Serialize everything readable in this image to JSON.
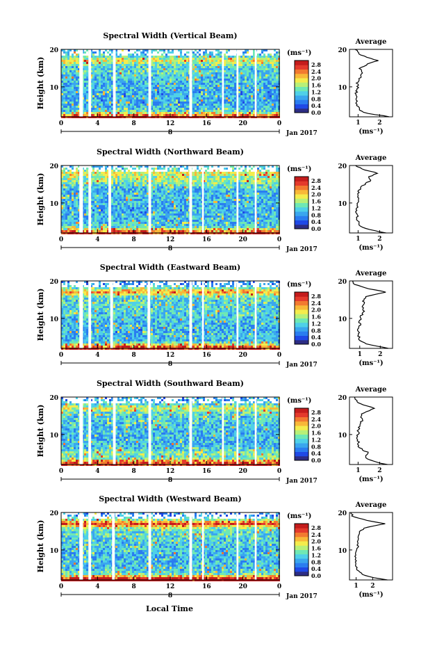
{
  "figure": {
    "xlabel": "Local Time",
    "date_label": "Jan 2017",
    "day_label": "8"
  },
  "colorbar": {
    "unit": "(ms⁻¹)",
    "ticks": [
      "0.0",
      "0.4",
      "0.8",
      "1.2",
      "1.6",
      "2.0",
      "2.4",
      "2.8"
    ],
    "colors": [
      "#2d2d84",
      "#1f49e6",
      "#2a7df0",
      "#3aa6ee",
      "#4fd0e8",
      "#6fe8b4",
      "#b8f078",
      "#f4ec4c",
      "#f8b838",
      "#f27a30",
      "#e43a2c",
      "#c41c1c"
    ]
  },
  "chart_data": [
    {
      "type": "heatmap",
      "title": "Spectral Width (Vertical Beam)",
      "ylabel": "Height (km)",
      "x_ticks": [
        "0",
        "4",
        "8",
        "12",
        "16",
        "20",
        "0"
      ],
      "y_ticks": [
        "10",
        "20"
      ],
      "xlim": [
        0,
        24
      ],
      "ylim": [
        2,
        20
      ],
      "gaps_hours": [
        [
          2.0,
          2.4
        ],
        [
          3.0,
          3.3
        ],
        [
          5.7,
          6.0
        ],
        [
          9.6,
          9.9
        ],
        [
          14.1,
          14.4
        ],
        [
          17.7,
          17.9
        ],
        [
          19.3,
          19.5
        ],
        [
          21.3,
          21.5
        ]
      ],
      "average": {
        "title": "Average",
        "xlabel": "(ms⁻¹)",
        "x_ticks": [
          "1",
          "2"
        ],
        "xlim": [
          0.6,
          2.6
        ],
        "height_km": [
          2,
          3,
          4,
          5,
          6,
          7,
          8,
          9,
          10,
          11,
          12,
          13,
          14,
          15,
          16,
          17,
          18,
          19,
          20
        ],
        "width_ms": [
          2.5,
          1.3,
          1.05,
          0.95,
          0.92,
          0.95,
          0.9,
          0.95,
          1.0,
          0.95,
          1.05,
          1.1,
          1.2,
          1.1,
          1.4,
          1.9,
          1.3,
          1.0,
          0.9
        ]
      }
    },
    {
      "type": "heatmap",
      "title": "Spectral Width (Northward Beam)",
      "ylabel": "Height (km)",
      "x_ticks": [
        "0",
        "4",
        "8",
        "12",
        "16",
        "20",
        "0"
      ],
      "y_ticks": [
        "10",
        "20"
      ],
      "xlim": [
        0,
        24
      ],
      "ylim": [
        2,
        20
      ],
      "gaps_hours": [
        [
          2.0,
          2.4
        ],
        [
          3.0,
          3.3
        ],
        [
          5.2,
          5.5
        ],
        [
          9.6,
          9.9
        ],
        [
          14.1,
          14.4
        ],
        [
          15.5,
          15.7
        ],
        [
          19.3,
          19.5
        ],
        [
          21.3,
          21.5
        ]
      ],
      "average": {
        "title": "Average",
        "xlabel": "(ms⁻¹)",
        "x_ticks": [
          "1",
          "2"
        ],
        "xlim": [
          0.6,
          2.6
        ],
        "height_km": [
          2,
          3,
          4,
          5,
          6,
          7,
          8,
          9,
          10,
          11,
          12,
          13,
          14,
          15,
          16,
          17,
          18,
          19,
          20
        ],
        "width_ms": [
          2.3,
          1.4,
          1.1,
          1.0,
          0.95,
          0.95,
          0.9,
          0.95,
          1.0,
          1.0,
          1.05,
          1.0,
          1.1,
          1.3,
          1.6,
          1.5,
          1.9,
          1.2,
          0.9
        ]
      }
    },
    {
      "type": "heatmap",
      "title": "Spectral Width (Eastward Beam)",
      "ylabel": "Height (km)",
      "x_ticks": [
        "0",
        "4",
        "8",
        "12",
        "16",
        "20",
        "0"
      ],
      "y_ticks": [
        "10",
        "20"
      ],
      "xlim": [
        0,
        24
      ],
      "ylim": [
        2,
        20
      ],
      "gaps_hours": [
        [
          2.0,
          2.4
        ],
        [
          3.0,
          3.3
        ],
        [
          5.4,
          5.7
        ],
        [
          9.5,
          9.8
        ],
        [
          14.1,
          14.4
        ],
        [
          15.5,
          15.7
        ],
        [
          19.3,
          19.5
        ],
        [
          21.3,
          21.5
        ]
      ],
      "average": {
        "title": "Average",
        "xlabel": "(ms⁻¹)",
        "x_ticks": [
          "1",
          "2"
        ],
        "xlim": [
          0.5,
          2.6
        ],
        "height_km": [
          2,
          3,
          4,
          5,
          6,
          7,
          8,
          9,
          10,
          11,
          12,
          13,
          14,
          15,
          16,
          17,
          18,
          19,
          20
        ],
        "width_ms": [
          2.4,
          1.4,
          1.05,
          0.95,
          0.95,
          0.9,
          1.0,
          1.0,
          1.05,
          1.1,
          1.2,
          1.15,
          1.2,
          1.15,
          1.4,
          2.3,
          1.4,
          0.8,
          0.6
        ]
      }
    },
    {
      "type": "heatmap",
      "title": "Spectral Width (Southward Beam)",
      "ylabel": "Height (km)",
      "x_ticks": [
        "0",
        "4",
        "8",
        "12",
        "16",
        "20",
        "0"
      ],
      "y_ticks": [
        "10",
        "20"
      ],
      "xlim": [
        0,
        24
      ],
      "ylim": [
        2,
        20
      ],
      "gaps_hours": [
        [
          2.0,
          2.4
        ],
        [
          3.0,
          3.3
        ],
        [
          5.7,
          6.0
        ],
        [
          9.6,
          9.9
        ],
        [
          14.1,
          14.4
        ],
        [
          17.7,
          17.9
        ],
        [
          19.3,
          19.5
        ],
        [
          21.3,
          21.5
        ]
      ],
      "average": {
        "title": "Average",
        "xlabel": "(ms⁻¹)",
        "x_ticks": [
          "1",
          "2"
        ],
        "xlim": [
          0.6,
          2.6
        ],
        "height_km": [
          2,
          3,
          4,
          5,
          6,
          7,
          8,
          9,
          10,
          11,
          12,
          13,
          14,
          15,
          16,
          17,
          18,
          19,
          20
        ],
        "width_ms": [
          2.3,
          1.6,
          1.3,
          1.5,
          1.2,
          1.0,
          1.0,
          0.95,
          1.0,
          1.0,
          1.05,
          1.1,
          1.2,
          1.1,
          1.3,
          1.8,
          1.2,
          0.9,
          0.8
        ]
      }
    },
    {
      "type": "heatmap",
      "title": "Spectral Width (Westward Beam)",
      "ylabel": "Height (km)",
      "x_ticks": [
        "0",
        "4",
        "8",
        "12",
        "16",
        "20",
        "0"
      ],
      "y_ticks": [
        "10",
        "20"
      ],
      "xlim": [
        0,
        24
      ],
      "ylim": [
        2,
        20
      ],
      "gaps_hours": [
        [
          2.0,
          2.4
        ],
        [
          3.0,
          3.3
        ],
        [
          5.6,
          5.9
        ],
        [
          9.6,
          9.9
        ],
        [
          14.1,
          14.4
        ],
        [
          15.5,
          15.7
        ],
        [
          19.3,
          19.5
        ],
        [
          21.3,
          21.5
        ]
      ],
      "average": {
        "title": "Average",
        "xlabel": "(ms⁻¹)",
        "x_ticks": [
          "1",
          "2"
        ],
        "xlim": [
          0.6,
          3.2
        ],
        "height_km": [
          2,
          3,
          4,
          5,
          6,
          7,
          8,
          9,
          10,
          11,
          12,
          13,
          14,
          15,
          16,
          17,
          18,
          19,
          20
        ],
        "width_ms": [
          2.9,
          1.6,
          1.2,
          1.05,
          1.0,
          1.0,
          0.95,
          1.0,
          1.05,
          1.1,
          1.1,
          1.15,
          1.2,
          1.2,
          1.6,
          2.7,
          1.5,
          0.8,
          0.7
        ]
      }
    }
  ]
}
